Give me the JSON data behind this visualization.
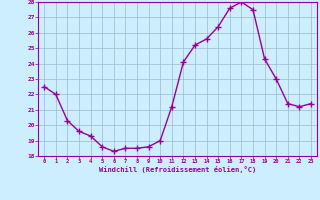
{
  "x": [
    0,
    1,
    2,
    3,
    4,
    5,
    6,
    7,
    8,
    9,
    10,
    11,
    12,
    13,
    14,
    15,
    16,
    17,
    18,
    19,
    20,
    21,
    22,
    23
  ],
  "y": [
    22.5,
    22.0,
    20.3,
    19.6,
    19.3,
    18.6,
    18.3,
    18.5,
    18.5,
    18.6,
    19.0,
    21.2,
    24.1,
    25.2,
    25.6,
    26.4,
    27.6,
    28.0,
    27.5,
    24.3,
    23.0,
    21.4,
    21.2,
    21.4
  ],
  "line_color": "#990099",
  "marker": "+",
  "markersize": 4,
  "linewidth": 1.0,
  "bg_color": "#cceeff",
  "grid_color": "#99bbcc",
  "xlabel": "Windchill (Refroidissement éolien,°C)",
  "xlabel_color": "#990099",
  "tick_color": "#990099",
  "ylim": [
    18,
    28
  ],
  "yticks": [
    18,
    19,
    20,
    21,
    22,
    23,
    24,
    25,
    26,
    27,
    28
  ],
  "xticks": [
    0,
    1,
    2,
    3,
    4,
    5,
    6,
    7,
    8,
    9,
    10,
    11,
    12,
    13,
    14,
    15,
    16,
    17,
    18,
    19,
    20,
    21,
    22,
    23
  ],
  "xlim": [
    -0.5,
    23.5
  ]
}
